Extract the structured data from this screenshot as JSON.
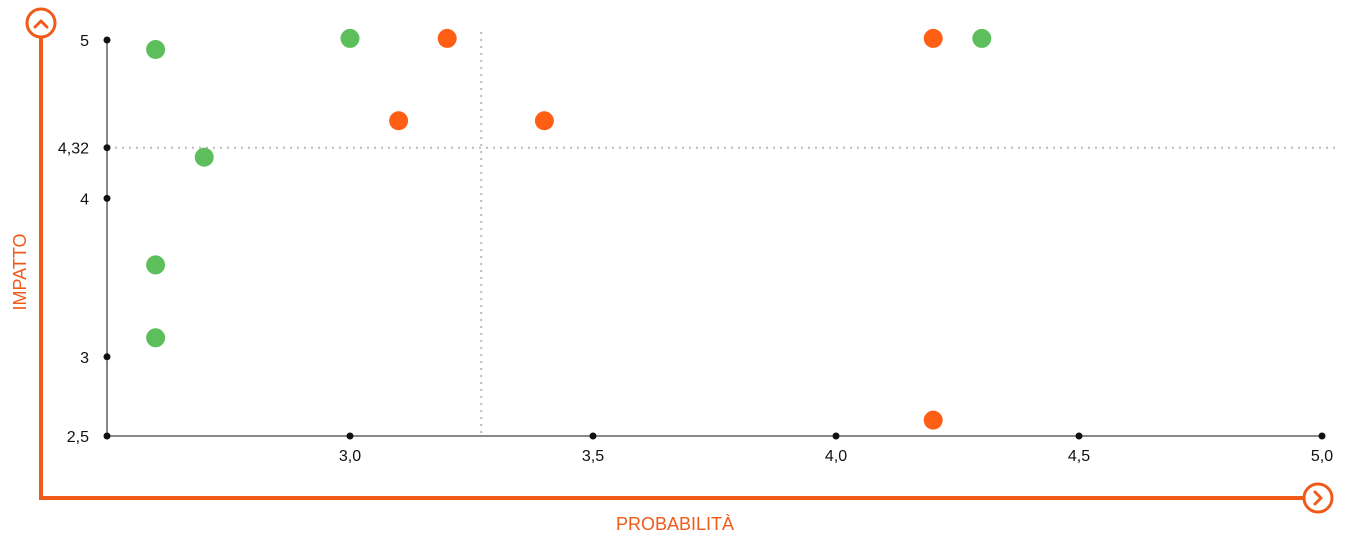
{
  "chart_data": {
    "type": "scatter",
    "title": "",
    "xlabel": "PROBABILITÀ",
    "ylabel": "IMPATTO",
    "xlim": [
      2.5,
      5.0
    ],
    "ylim": [
      2.5,
      5.0
    ],
    "x_ticks": [
      3.0,
      3.5,
      4.0,
      4.5,
      5.0
    ],
    "x_tick_labels": [
      "3,0",
      "3,5",
      "4,0",
      "4,5",
      "5,0"
    ],
    "y_ticks": [
      2.5,
      3,
      4,
      4.32,
      5
    ],
    "y_tick_labels": [
      "2,5",
      "3",
      "4",
      "4,32",
      "5"
    ],
    "reference_lines": {
      "x": 3.27,
      "y": 4.32
    },
    "series": [
      {
        "color": "#5cbf5c",
        "points": [
          [
            2.6,
            4.94
          ],
          [
            3.0,
            5.01
          ],
          [
            4.3,
            5.01
          ],
          [
            2.7,
            4.26
          ],
          [
            2.6,
            3.58
          ],
          [
            2.6,
            3.12
          ]
        ]
      },
      {
        "color": "#ff5f14",
        "points": [
          [
            3.2,
            5.01
          ],
          [
            4.2,
            5.01
          ],
          [
            3.1,
            4.49
          ],
          [
            3.4,
            4.49
          ],
          [
            4.2,
            2.6
          ]
        ]
      }
    ],
    "grid": false,
    "accent_color": "#f05a1a"
  }
}
